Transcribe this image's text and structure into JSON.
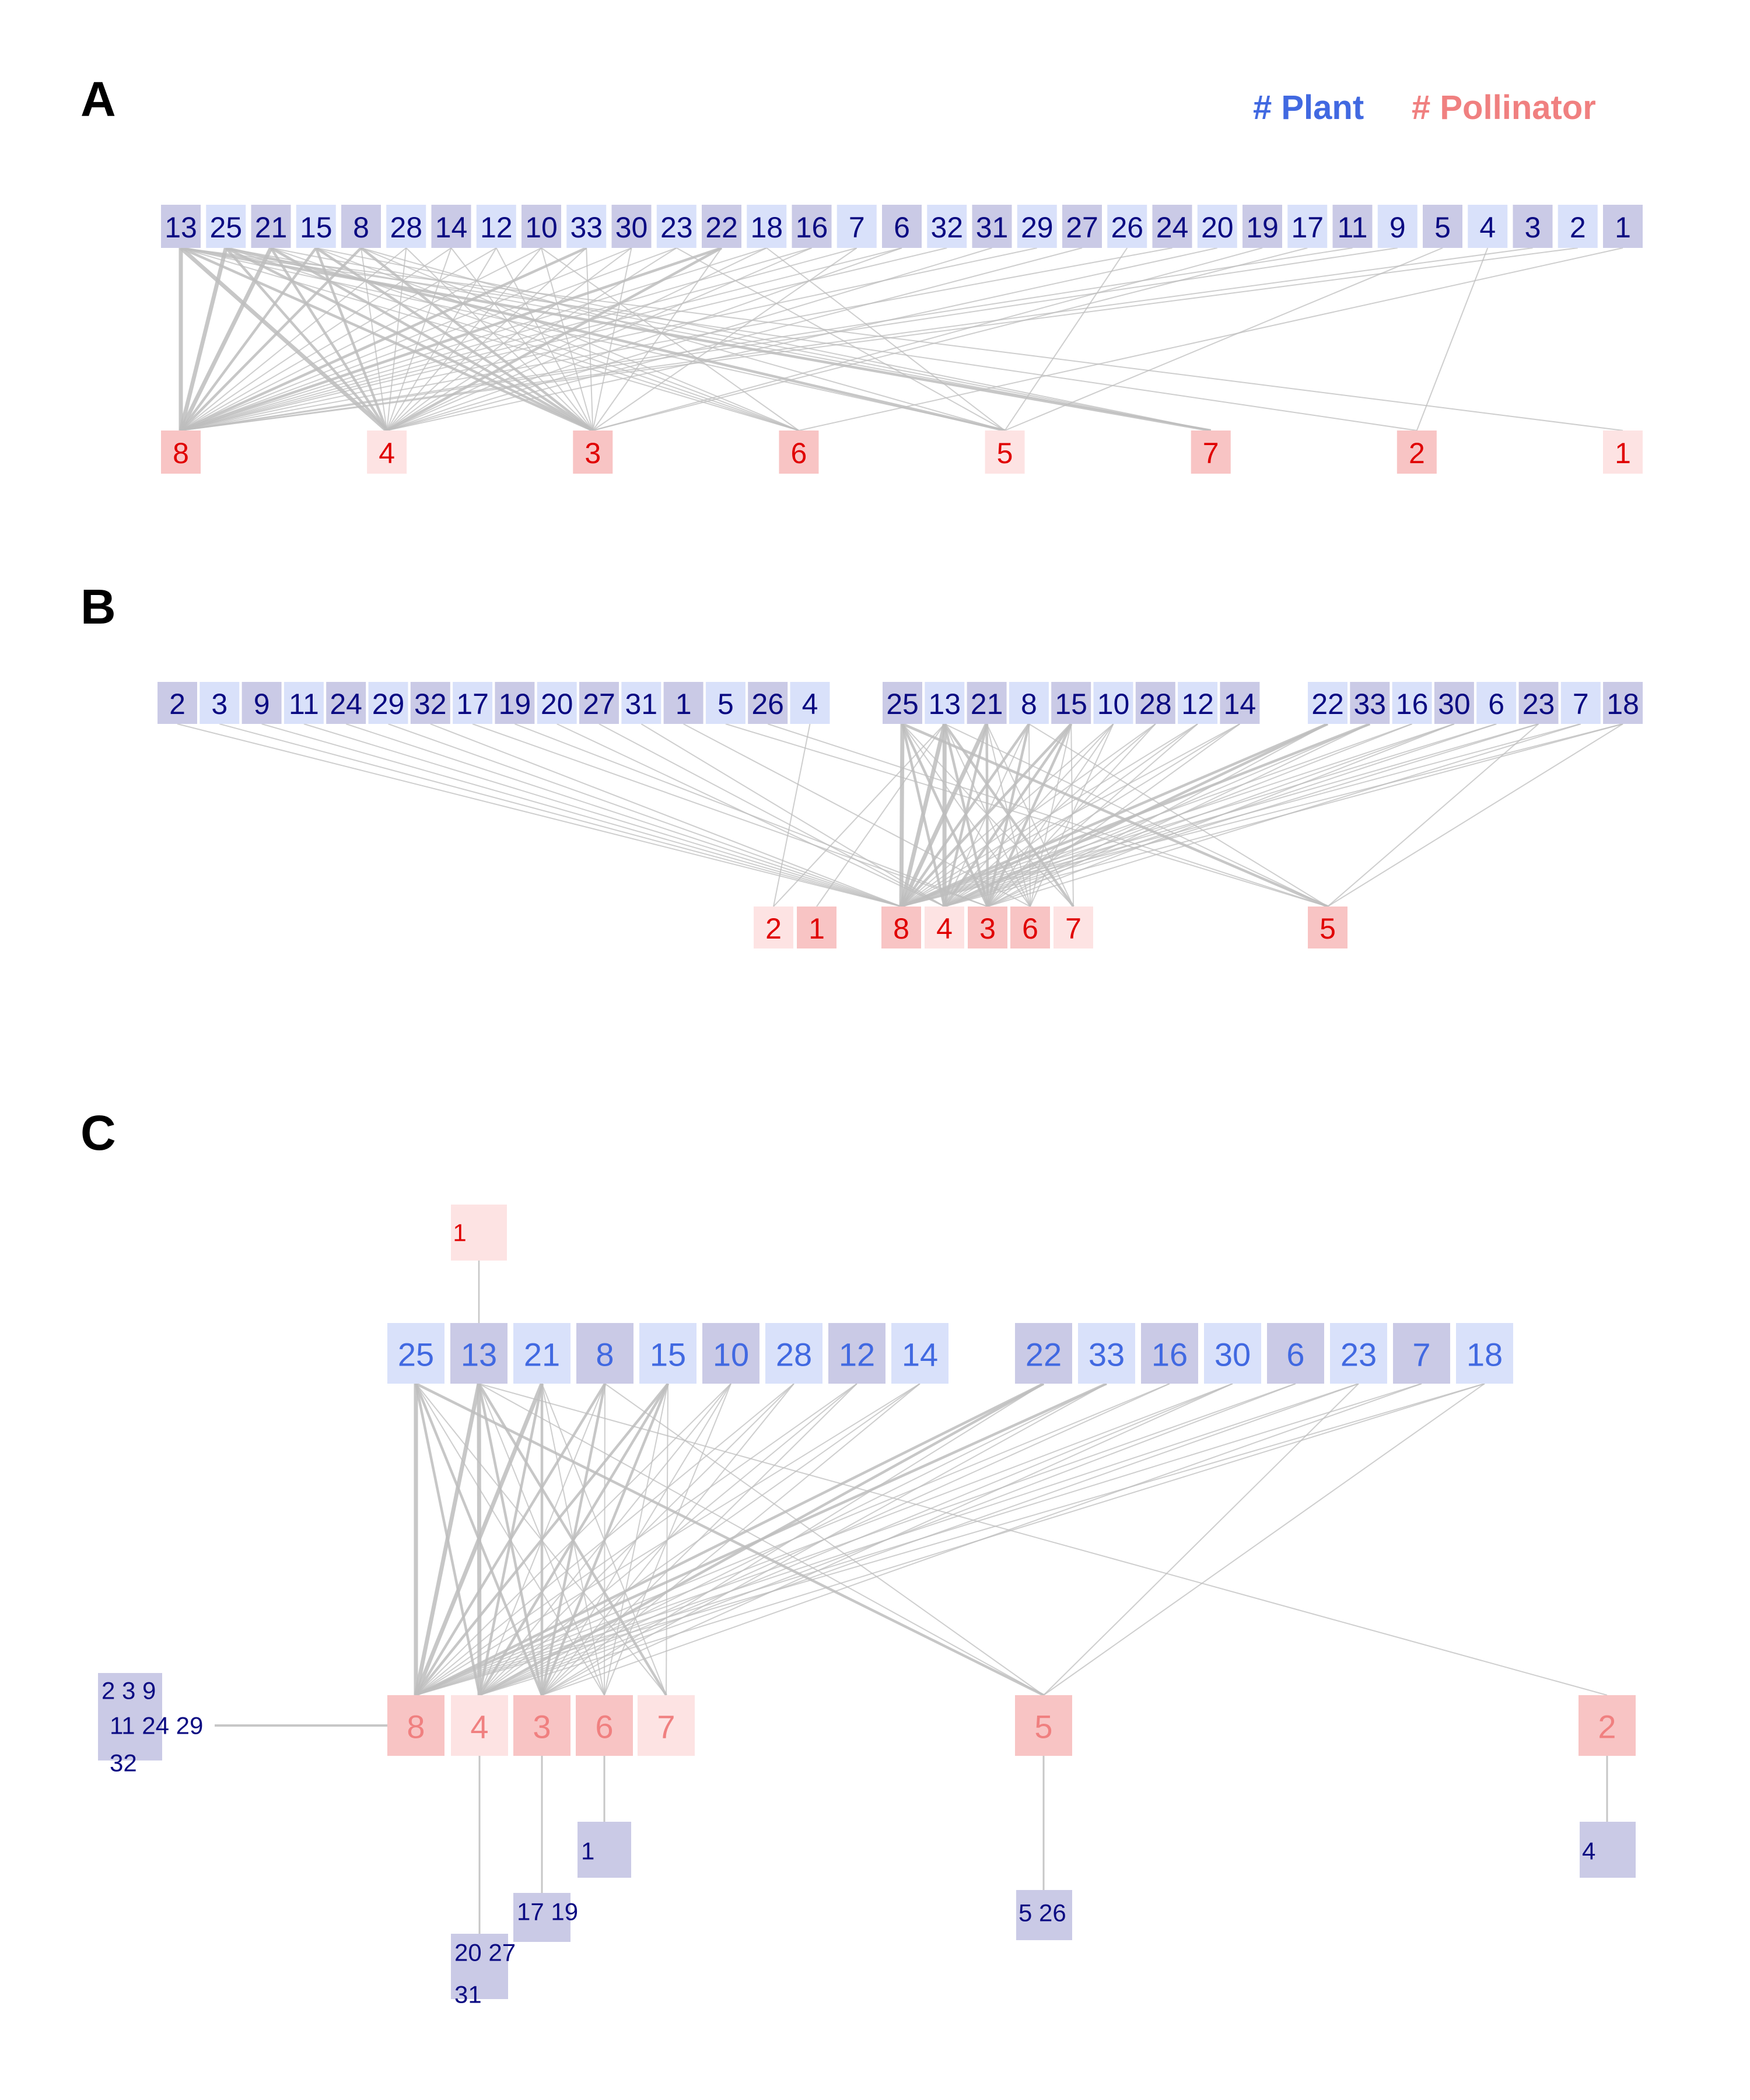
{
  "legend": {
    "plant_label": "# Plant",
    "pollinator_label": "# Pollinator",
    "plant_color": "#4169E1",
    "pollinator_color": "#F08080"
  },
  "colors": {
    "plant_text": "#0a0a82",
    "pollinator_text": "#e00000",
    "plant_box_dark": "#cacae6",
    "plant_box_light": "#d9e1fa",
    "pollinator_box_dark": "#f8c4c4",
    "pollinator_box_light": "#fde3e3",
    "panel_c_plant_text": "#4169E1",
    "panel_c_pollinator_text": "#F08080",
    "edge": "#bdbdbd"
  },
  "panels": {
    "A": {
      "label": "A",
      "plants": [
        "13",
        "25",
        "21",
        "15",
        "8",
        "28",
        "14",
        "12",
        "10",
        "33",
        "30",
        "23",
        "22",
        "18",
        "16",
        "7",
        "6",
        "32",
        "31",
        "29",
        "27",
        "26",
        "24",
        "20",
        "19",
        "17",
        "11",
        "9",
        "5",
        "4",
        "3",
        "2",
        "1"
      ],
      "pollinators": [
        "8",
        "4",
        "3",
        "6",
        "5",
        "7",
        "2",
        "1"
      ]
    },
    "B": {
      "label": "B",
      "plants": [
        "2",
        "3",
        "9",
        "11",
        "24",
        "29",
        "32",
        "17",
        "19",
        "20",
        "27",
        "31",
        "1",
        "5",
        "26",
        "4",
        "25",
        "13",
        "21",
        "8",
        "15",
        "10",
        "28",
        "12",
        "14",
        "22",
        "33",
        "16",
        "30",
        "6",
        "23",
        "7",
        "18"
      ],
      "pollinators": [
        "2",
        "1",
        "8",
        "4",
        "3",
        "6",
        "7",
        "5"
      ]
    },
    "C": {
      "label": "C",
      "top_pollinator": "1",
      "plants": [
        "25",
        "13",
        "21",
        "8",
        "15",
        "10",
        "28",
        "12",
        "14",
        "22",
        "33",
        "16",
        "30",
        "6",
        "23",
        "7",
        "18"
      ],
      "pollinators": [
        "8",
        "4",
        "3",
        "6",
        "7",
        "5",
        "2"
      ],
      "groups": [
        {
          "lines": [
            "2  3  9",
            "11  24  29",
            "32"
          ]
        },
        {
          "lines": [
            "20  27",
            "31"
          ]
        },
        {
          "lines": [
            "17  19"
          ]
        },
        {
          "lines": [
            "1"
          ]
        },
        {
          "lines": [
            "5  26"
          ]
        },
        {
          "lines": [
            "4"
          ]
        }
      ]
    }
  },
  "edges": [
    {
      "plant": "13",
      "pollinator": "8",
      "w": 3
    },
    {
      "plant": "13",
      "pollinator": "4",
      "w": 3
    },
    {
      "plant": "13",
      "pollinator": "3",
      "w": 2
    },
    {
      "plant": "13",
      "pollinator": "7",
      "w": 2
    },
    {
      "plant": "13",
      "pollinator": "2",
      "w": 1
    },
    {
      "plant": "13",
      "pollinator": "1",
      "w": 1
    },
    {
      "plant": "13",
      "pollinator": "6",
      "w": 1
    },
    {
      "plant": "13",
      "pollinator": "5",
      "w": 1
    },
    {
      "plant": "25",
      "pollinator": "8",
      "w": 3
    },
    {
      "plant": "25",
      "pollinator": "4",
      "w": 2
    },
    {
      "plant": "25",
      "pollinator": "3",
      "w": 2
    },
    {
      "plant": "25",
      "pollinator": "6",
      "w": 1
    },
    {
      "plant": "25",
      "pollinator": "7",
      "w": 1
    },
    {
      "plant": "25",
      "pollinator": "5",
      "w": 2
    },
    {
      "plant": "21",
      "pollinator": "8",
      "w": 3
    },
    {
      "plant": "21",
      "pollinator": "4",
      "w": 2
    },
    {
      "plant": "21",
      "pollinator": "3",
      "w": 2
    },
    {
      "plant": "21",
      "pollinator": "6",
      "w": 1
    },
    {
      "plant": "21",
      "pollinator": "7",
      "w": 1
    },
    {
      "plant": "15",
      "pollinator": "8",
      "w": 2
    },
    {
      "plant": "15",
      "pollinator": "4",
      "w": 2
    },
    {
      "plant": "15",
      "pollinator": "3",
      "w": 2
    },
    {
      "plant": "15",
      "pollinator": "6",
      "w": 1
    },
    {
      "plant": "15",
      "pollinator": "7",
      "w": 1
    },
    {
      "plant": "8",
      "pollinator": "8",
      "w": 2
    },
    {
      "plant": "8",
      "pollinator": "4",
      "w": 1
    },
    {
      "plant": "8",
      "pollinator": "3",
      "w": 2
    },
    {
      "plant": "8",
      "pollinator": "6",
      "w": 1
    },
    {
      "plant": "8",
      "pollinator": "5",
      "w": 1
    },
    {
      "plant": "28",
      "pollinator": "8",
      "w": 1
    },
    {
      "plant": "28",
      "pollinator": "4",
      "w": 1
    },
    {
      "plant": "28",
      "pollinator": "3",
      "w": 1
    },
    {
      "plant": "14",
      "pollinator": "8",
      "w": 1
    },
    {
      "plant": "14",
      "pollinator": "4",
      "w": 1
    },
    {
      "plant": "14",
      "pollinator": "3",
      "w": 1
    },
    {
      "plant": "12",
      "pollinator": "8",
      "w": 1
    },
    {
      "plant": "12",
      "pollinator": "4",
      "w": 1
    },
    {
      "plant": "12",
      "pollinator": "3",
      "w": 1
    },
    {
      "plant": "10",
      "pollinator": "8",
      "w": 1
    },
    {
      "plant": "10",
      "pollinator": "4",
      "w": 1
    },
    {
      "plant": "10",
      "pollinator": "3",
      "w": 1
    },
    {
      "plant": "10",
      "pollinator": "6",
      "w": 1
    },
    {
      "plant": "33",
      "pollinator": "8",
      "w": 2
    },
    {
      "plant": "33",
      "pollinator": "4",
      "w": 1
    },
    {
      "plant": "33",
      "pollinator": "3",
      "w": 1
    },
    {
      "plant": "30",
      "pollinator": "8",
      "w": 1
    },
    {
      "plant": "30",
      "pollinator": "4",
      "w": 1
    },
    {
      "plant": "30",
      "pollinator": "3",
      "w": 1
    },
    {
      "plant": "23",
      "pollinator": "8",
      "w": 1
    },
    {
      "plant": "23",
      "pollinator": "4",
      "w": 1
    },
    {
      "plant": "23",
      "pollinator": "5",
      "w": 1
    },
    {
      "plant": "22",
      "pollinator": "8",
      "w": 2
    },
    {
      "plant": "22",
      "pollinator": "4",
      "w": 2
    },
    {
      "plant": "22",
      "pollinator": "3",
      "w": 1
    },
    {
      "plant": "18",
      "pollinator": "8",
      "w": 1
    },
    {
      "plant": "18",
      "pollinator": "4",
      "w": 1
    },
    {
      "plant": "18",
      "pollinator": "5",
      "w": 1
    },
    {
      "plant": "16",
      "pollinator": "8",
      "w": 1
    },
    {
      "plant": "16",
      "pollinator": "4",
      "w": 1
    },
    {
      "plant": "7",
      "pollinator": "8",
      "w": 1
    },
    {
      "plant": "7",
      "pollinator": "3",
      "w": 1
    },
    {
      "plant": "6",
      "pollinator": "8",
      "w": 1
    },
    {
      "plant": "6",
      "pollinator": "4",
      "w": 1
    },
    {
      "plant": "32",
      "pollinator": "8",
      "w": 1
    },
    {
      "plant": "31",
      "pollinator": "4",
      "w": 1
    },
    {
      "plant": "29",
      "pollinator": "8",
      "w": 1
    },
    {
      "plant": "27",
      "pollinator": "4",
      "w": 1
    },
    {
      "plant": "26",
      "pollinator": "5",
      "w": 1
    },
    {
      "plant": "24",
      "pollinator": "8",
      "w": 1
    },
    {
      "plant": "20",
      "pollinator": "4",
      "w": 1
    },
    {
      "plant": "19",
      "pollinator": "3",
      "w": 1
    },
    {
      "plant": "17",
      "pollinator": "3",
      "w": 1
    },
    {
      "plant": "11",
      "pollinator": "8",
      "w": 1
    },
    {
      "plant": "9",
      "pollinator": "8",
      "w": 1
    },
    {
      "plant": "5",
      "pollinator": "5",
      "w": 1
    },
    {
      "plant": "4",
      "pollinator": "2",
      "w": 1
    },
    {
      "plant": "3",
      "pollinator": "8",
      "w": 1
    },
    {
      "plant": "2",
      "pollinator": "8",
      "w": 1
    },
    {
      "plant": "1",
      "pollinator": "6",
      "w": 1
    }
  ]
}
